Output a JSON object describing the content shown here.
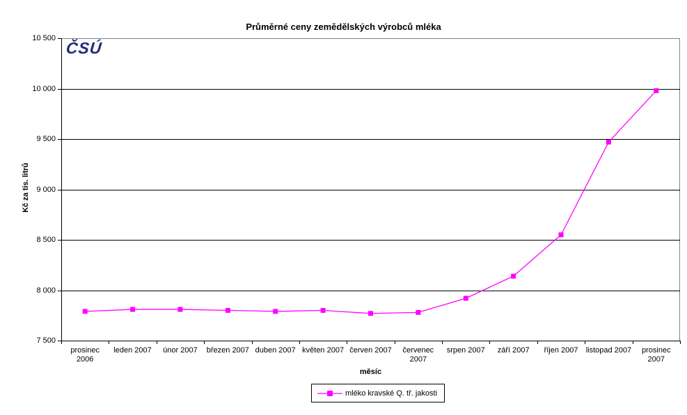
{
  "page": {
    "background": "#FFFFFF"
  },
  "logo": {
    "text": "ČSÚ",
    "color": "#1F2D78"
  },
  "colors": {
    "series": "#FF00FF",
    "gridline": "#000000",
    "plot_border": "#808080",
    "axis": "#000000",
    "text": "#000000"
  },
  "chart_data": {
    "type": "line",
    "title": "Průměrné ceny zemědělských výrobců mléka",
    "xlabel": "měsíc",
    "ylabel": "Kč za tis. litrů",
    "categories": [
      "prosinec 2006",
      "leden 2007",
      "únor 2007",
      "březen 2007",
      "duben 2007",
      "květen 2007",
      "červen 2007",
      "červenec 2007",
      "srpen 2007",
      "září 2007",
      "říjen 2007",
      "listopad 2007",
      "prosinec 2007"
    ],
    "xtick_lines": [
      [
        "prosinec",
        "2006"
      ],
      [
        "leden 2007"
      ],
      [
        "únor 2007"
      ],
      [
        "březen 2007"
      ],
      [
        "duben 2007"
      ],
      [
        "květen 2007"
      ],
      [
        "červen 2007"
      ],
      [
        "červenec",
        "2007"
      ],
      [
        "srpen 2007"
      ],
      [
        "září 2007"
      ],
      [
        "říjen 2007"
      ],
      [
        "listopad 2007"
      ],
      [
        "prosinec",
        "2007"
      ]
    ],
    "series": [
      {
        "name": "mléko kravské Q. tř. jakosti",
        "color": "#FF00FF",
        "marker": "square",
        "values": [
          7790,
          7810,
          7810,
          7800,
          7790,
          7800,
          7770,
          7780,
          7920,
          8140,
          8550,
          9470,
          9980
        ]
      }
    ],
    "ylim": [
      7500,
      10500
    ],
    "ytick_step": 500,
    "ytick_labels": [
      "10 500",
      "10 000",
      "9 500",
      "9 000",
      "8 500",
      "8 000",
      "7 500"
    ],
    "grid": "horizontal",
    "legend_position": "bottom"
  }
}
